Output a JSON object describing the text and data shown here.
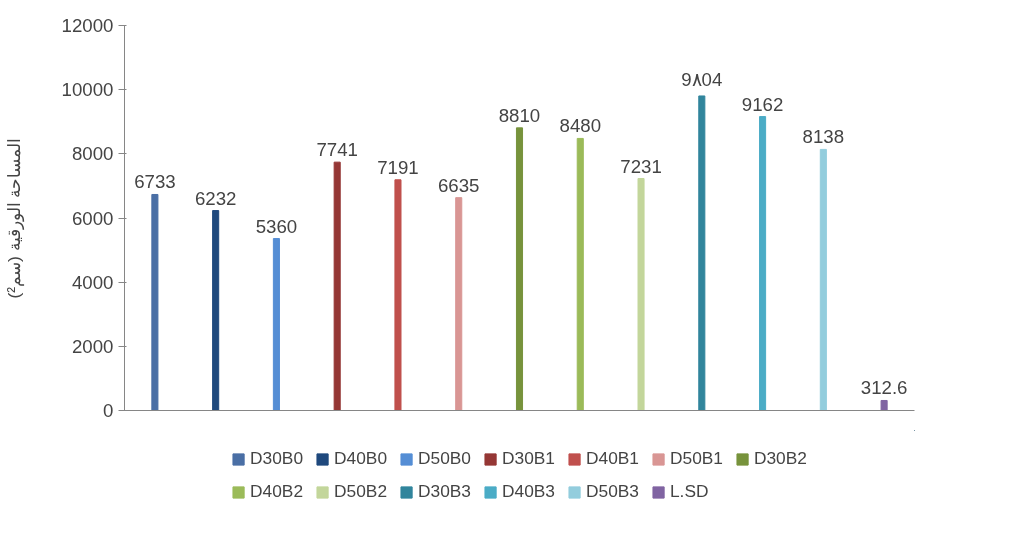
{
  "chart_data": {
    "type": "bar",
    "ylabel": "المساحة الورقية (سم²)",
    "categories": [
      null,
      null,
      null,
      null,
      null,
      null,
      null,
      null,
      null,
      null,
      null,
      null,
      null
    ],
    "series": [
      {
        "name": "D30B0",
        "color": "#4a6fa5",
        "values": [
          6733,
          null,
          null,
          null,
          null,
          null,
          null,
          null,
          null,
          null,
          null,
          null,
          null
        ],
        "value_labels": [
          "6733",
          null,
          null,
          null,
          null,
          null,
          null,
          null,
          null,
          null,
          null,
          null,
          null
        ]
      },
      {
        "name": "D40B0",
        "color": "#1f497d",
        "values": [
          null,
          6232,
          null,
          null,
          null,
          null,
          null,
          null,
          null,
          null,
          null,
          null,
          null
        ],
        "value_labels": [
          null,
          "6232",
          null,
          null,
          null,
          null,
          null,
          null,
          null,
          null,
          null,
          null,
          null
        ]
      },
      {
        "name": "D50B0",
        "color": "#558ed5",
        "values": [
          null,
          null,
          5360,
          null,
          null,
          null,
          null,
          null,
          null,
          null,
          null,
          null,
          null
        ],
        "value_labels": [
          null,
          null,
          "5360",
          null,
          null,
          null,
          null,
          null,
          null,
          null,
          null,
          null,
          null
        ]
      },
      {
        "name": "D30B1",
        "color": "#953735",
        "values": [
          null,
          null,
          null,
          7741,
          null,
          null,
          null,
          null,
          null,
          null,
          null,
          null,
          null
        ],
        "value_labels": [
          null,
          null,
          null,
          "7741",
          null,
          null,
          null,
          null,
          null,
          null,
          null,
          null,
          null
        ]
      },
      {
        "name": "D40B1",
        "color": "#c0504d",
        "values": [
          null,
          null,
          null,
          null,
          7191,
          null,
          null,
          null,
          null,
          null,
          null,
          null,
          null
        ],
        "value_labels": [
          null,
          null,
          null,
          null,
          "7191",
          null,
          null,
          null,
          null,
          null,
          null,
          null,
          null
        ]
      },
      {
        "name": "D50B1",
        "color": "#d99694",
        "values": [
          null,
          null,
          null,
          null,
          null,
          6635,
          null,
          null,
          null,
          null,
          null,
          null,
          null
        ],
        "value_labels": [
          null,
          null,
          null,
          null,
          null,
          "6635",
          null,
          null,
          null,
          null,
          null,
          null,
          null
        ]
      },
      {
        "name": "D30B2",
        "color": "#77933c",
        "values": [
          null,
          null,
          null,
          null,
          null,
          null,
          8810,
          null,
          null,
          null,
          null,
          null,
          null
        ],
        "value_labels": [
          null,
          null,
          null,
          null,
          null,
          null,
          "8810",
          null,
          null,
          null,
          null,
          null,
          null
        ]
      },
      {
        "name": "D40B2",
        "color": "#9bbb59",
        "values": [
          null,
          null,
          null,
          null,
          null,
          null,
          null,
          8480,
          null,
          null,
          null,
          null,
          null
        ],
        "value_labels": [
          null,
          null,
          null,
          null,
          null,
          null,
          null,
          "8480",
          null,
          null,
          null,
          null,
          null
        ]
      },
      {
        "name": "D50B2",
        "color": "#c3d69b",
        "values": [
          null,
          null,
          null,
          null,
          null,
          null,
          null,
          null,
          7231,
          null,
          null,
          null,
          null
        ],
        "value_labels": [
          null,
          null,
          null,
          null,
          null,
          null,
          null,
          null,
          "7231",
          null,
          null,
          null,
          null
        ]
      },
      {
        "name": "D30B3",
        "color": "#31859c",
        "values": [
          null,
          null,
          null,
          null,
          null,
          null,
          null,
          null,
          null,
          9804,
          null,
          null,
          null
        ],
        "value_labels": [
          null,
          null,
          null,
          null,
          null,
          null,
          null,
          null,
          null,
          "9٨04",
          null,
          null,
          null
        ]
      },
      {
        "name": "D40B3",
        "color": "#4bacc6",
        "values": [
          null,
          null,
          null,
          null,
          null,
          null,
          null,
          null,
          null,
          null,
          9162,
          null,
          null
        ],
        "value_labels": [
          null,
          null,
          null,
          null,
          null,
          null,
          null,
          null,
          null,
          null,
          "9162",
          null,
          null
        ]
      },
      {
        "name": "D50B3",
        "color": "#93cddd",
        "values": [
          null,
          null,
          null,
          null,
          null,
          null,
          null,
          null,
          null,
          null,
          null,
          8138,
          null
        ],
        "value_labels": [
          null,
          null,
          null,
          null,
          null,
          null,
          null,
          null,
          null,
          null,
          null,
          "8138",
          null
        ]
      },
      {
        "name": "L.SD",
        "color": "#8064a2",
        "values": [
          null,
          null,
          null,
          null,
          null,
          null,
          null,
          null,
          null,
          null,
          null,
          null,
          312.6
        ],
        "value_labels": [
          null,
          null,
          null,
          null,
          null,
          null,
          null,
          null,
          null,
          null,
          null,
          null,
          "312.6"
        ]
      }
    ],
    "ylim": [
      0,
      12000
    ],
    "yticks": [
      0,
      2000,
      4000,
      6000,
      8000,
      10000,
      12000
    ],
    "grid": false,
    "legend": "bottom",
    "tick_labels": "y"
  }
}
